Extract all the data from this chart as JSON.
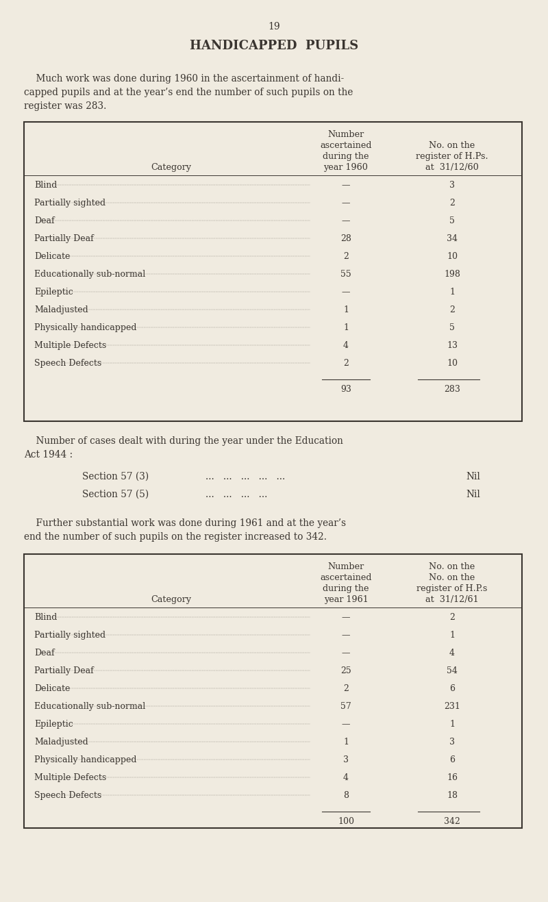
{
  "bg_color": "#f0ebe0",
  "text_color": "#3a3530",
  "page_number": "19",
  "title": "HANDICAPPED  PUPILS",
  "para1_line1": "    Much work was done during 1960 in the ascertainment of handi-",
  "para1_line2": "capped pupils and at the year’s end the number of such pupils on the",
  "para1_line3": "register was 283.",
  "table1_hdr_col2_l1": "Number",
  "table1_hdr_col2_l2": "ascertained",
  "table1_hdr_col2_l3": "during the",
  "table1_hdr_col2_l4": "year 1960",
  "table1_hdr_col3_l1": "No. on the",
  "table1_hdr_col3_l2": "register of H.Ps.",
  "table1_hdr_col3_l3": "at  31/12/60",
  "table1_hdr_col1": "Category",
  "table1_rows": [
    [
      "Blind",
      "—",
      "3"
    ],
    [
      "Partially sighted",
      "—",
      "2"
    ],
    [
      "Deaf",
      "—",
      "5"
    ],
    [
      "Partially Deaf",
      "28",
      "34"
    ],
    [
      "Delicate",
      "2",
      "10"
    ],
    [
      "Educationally sub-normal",
      "55",
      "198"
    ],
    [
      "Epileptic",
      "—",
      "1"
    ],
    [
      "Maladjusted",
      "1",
      "2"
    ],
    [
      "Physically handicapped",
      "1",
      "5"
    ],
    [
      "Multiple Defects",
      "4",
      "13"
    ],
    [
      "Speech Defects",
      "2",
      "10"
    ]
  ],
  "table1_total1": "93",
  "table1_total2": "283",
  "section_line1": "    Number of cases dealt with during the year under the Education",
  "section_line2": "Act 1944 :",
  "s573_label": "Section 57 (3)",
  "s573_dots": "...   ...   ...   ...   ...",
  "s573_val": "Nil",
  "s575_label": "Section 57 (5)",
  "s575_dots": "...   ...   ...   ...",
  "s575_val": "Nil",
  "para2_line1": "    Further substantial work was done during 1961 and at the year’s",
  "para2_line2": "end the number of such pupils on the register increased to 342.",
  "table2_hdr_col2_l1": "Number",
  "table2_hdr_col2_l2": "ascertained",
  "table2_hdr_col2_l3": "during the",
  "table2_hdr_col2_l4": "year 1961",
  "table2_hdr_col3_l1": "No. on the",
  "table2_hdr_col3_l2": "register of H.P.s",
  "table2_hdr_col3_l3": "at  31/12/61",
  "table2_hdr_col1": "Category",
  "table2_rows": [
    [
      "Blind",
      "—",
      "2"
    ],
    [
      "Partially sighted",
      "—",
      "1"
    ],
    [
      "Deaf",
      "—",
      "4"
    ],
    [
      "Partially Deaf",
      "25",
      "54"
    ],
    [
      "Delicate",
      "2",
      "6"
    ],
    [
      "Educationally sub-normal",
      "57",
      "231"
    ],
    [
      "Epileptic",
      "—",
      "1"
    ],
    [
      "Maladjusted",
      "1",
      "3"
    ],
    [
      "Physically handicapped",
      "3",
      "6"
    ],
    [
      "Multiple Defects",
      "4",
      "16"
    ],
    [
      "Speech Defects",
      "8",
      "18"
    ]
  ],
  "table2_total1": "100",
  "table2_total2": "342",
  "fs_pagenum": 10,
  "fs_title": 13,
  "fs_body": 9.8,
  "fs_table_hdr": 9.2,
  "fs_table_row": 9.0
}
